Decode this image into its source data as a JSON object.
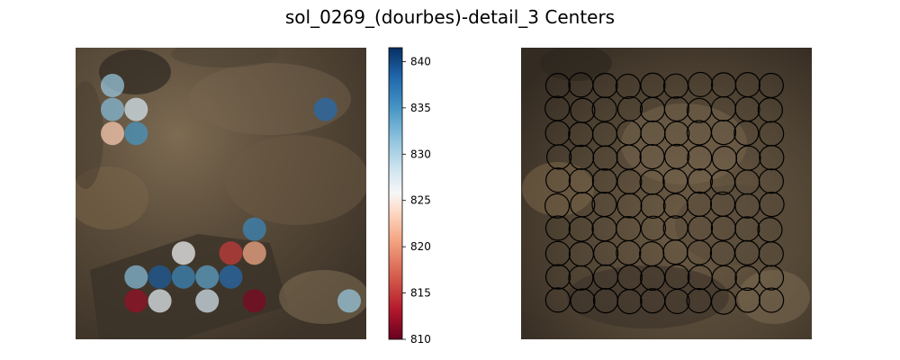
{
  "title": "sol_0269_(dourbes)-detail_3 Centers",
  "colors": {
    "background": "#ffffff",
    "rock_base": "#5a4c3a",
    "rock_dark": "#3a3026",
    "rock_light": "#8a7658",
    "circle_outline": "#000000"
  },
  "chart_data": [
    {
      "type": "scatter",
      "panel": "left",
      "colormap": "RdBu",
      "colorbar": {
        "vmin": 810,
        "vmax": 841.5,
        "ticks": [
          "810",
          "815",
          "820",
          "825",
          "830",
          "835",
          "840"
        ],
        "tick_values": [
          810,
          815,
          820,
          825,
          830,
          835,
          840
        ]
      },
      "grid_cols": 10,
      "grid_rows": 10,
      "points": [
        {
          "col": 0,
          "row": 0,
          "value": 831
        },
        {
          "col": 0,
          "row": 1,
          "value": 832
        },
        {
          "col": 1,
          "row": 1,
          "value": 828
        },
        {
          "col": 0,
          "row": 2,
          "value": 823
        },
        {
          "col": 1,
          "row": 2,
          "value": 835
        },
        {
          "col": 9,
          "row": 1,
          "value": 838
        },
        {
          "col": 6,
          "row": 6,
          "value": 836
        },
        {
          "col": 3,
          "row": 7,
          "value": 826
        },
        {
          "col": 5,
          "row": 7,
          "value": 815
        },
        {
          "col": 6,
          "row": 7,
          "value": 821
        },
        {
          "col": 1,
          "row": 8,
          "value": 832
        },
        {
          "col": 2,
          "row": 8,
          "value": 839
        },
        {
          "col": 3,
          "row": 8,
          "value": 836
        },
        {
          "col": 4,
          "row": 8,
          "value": 834
        },
        {
          "col": 5,
          "row": 8,
          "value": 838
        },
        {
          "col": 1,
          "row": 9,
          "value": 812
        },
        {
          "col": 2,
          "row": 9,
          "value": 827
        },
        {
          "col": 4,
          "row": 9,
          "value": 828
        },
        {
          "col": 6,
          "row": 9,
          "value": 811
        },
        {
          "col": 10,
          "row": 9,
          "value": 831
        }
      ]
    },
    {
      "type": "scatter",
      "panel": "right",
      "grid_cols": 10,
      "grid_rows": 10,
      "marker": "open-circle"
    }
  ]
}
